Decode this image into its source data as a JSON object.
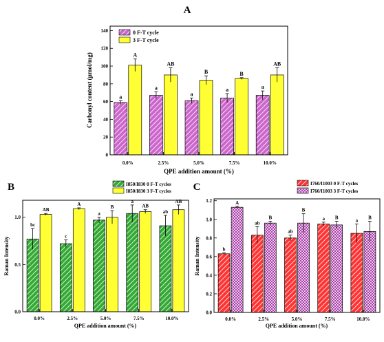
{
  "chart_data": [
    {
      "panel": "A",
      "type": "bar",
      "categories": [
        "0.0%",
        "2.5%",
        "5.0%",
        "7.5%",
        "10.0%"
      ],
      "xlabel": "QPE addition amount (%)",
      "ylabel": "Carbonyl content (µmol/mg)",
      "ylim": [
        0,
        145
      ],
      "yticks": [
        0,
        20,
        40,
        60,
        80,
        100,
        120,
        140
      ],
      "legend_position": "top-left",
      "grid": false,
      "series": [
        {
          "name": "0 F-T cycle",
          "values": [
            59,
            67,
            61,
            64,
            67
          ],
          "errors": [
            2,
            4,
            3,
            5,
            5
          ],
          "letters": [
            "a",
            "a",
            "a",
            "a",
            "a"
          ],
          "color": "#cc66cc",
          "pattern": "diagonal-hatch"
        },
        {
          "name": "3 F-T cycle",
          "values": [
            101,
            90,
            84,
            86,
            90
          ],
          "errors": [
            7,
            8,
            5,
            1,
            8
          ],
          "letters": [
            "A",
            "AB",
            "B",
            "B",
            "AB"
          ],
          "color": "#ffff33",
          "pattern": "solid"
        }
      ]
    },
    {
      "panel": "B",
      "type": "bar",
      "categories": [
        "0.0%",
        "2.5%",
        "5.0%",
        "7.5%",
        "10.0%"
      ],
      "xlabel": "QPE addition amount (%)",
      "ylabel": "Raman Intensity",
      "ylim": [
        0,
        1.18
      ],
      "yticks": [
        0.0,
        0.5,
        1.0
      ],
      "legend_position": "top-right",
      "grid": false,
      "series": [
        {
          "name": "I850/I830 0 F-T cycles",
          "values": [
            0.77,
            0.72,
            0.97,
            1.04,
            0.91
          ],
          "errors": [
            0.11,
            0.04,
            0.03,
            0.09,
            0.11
          ],
          "letters": [
            "bc",
            "c",
            "a",
            "a",
            "ab"
          ],
          "color": "#33aa33",
          "pattern": "diagonal-hatch"
        },
        {
          "name": "I850/I830 3 F-T cycles",
          "values": [
            1.03,
            1.09,
            1.0,
            1.06,
            1.08
          ],
          "errors": [
            0.01,
            0.01,
            0.07,
            0.02,
            0.05
          ],
          "letters": [
            "AB",
            "A",
            "B",
            "AB",
            "AB"
          ],
          "color": "#ffff33",
          "pattern": "solid"
        }
      ]
    },
    {
      "panel": "C",
      "type": "bar",
      "categories": [
        "0.0%",
        "2.5%",
        "5.0%",
        "7.5%",
        "10.0%"
      ],
      "xlabel": "QPE addition amount (%)",
      "ylabel": "Raman Intensity",
      "ylim": [
        0,
        1.22
      ],
      "yticks": [
        0.0,
        0.2,
        0.4,
        0.6,
        0.8,
        1.0,
        1.2
      ],
      "legend_position": "top-right",
      "grid": false,
      "series": [
        {
          "name": "I760/I1003 0 F-T cycles",
          "values": [
            0.63,
            0.83,
            0.8,
            0.95,
            0.85
          ],
          "errors": [
            0.01,
            0.09,
            0.03,
            0.02,
            0.1
          ],
          "letters": [
            "b",
            "ab",
            "ab",
            "a",
            "a"
          ],
          "color": "#ff3333",
          "pattern": "diagonal-hatch"
        },
        {
          "name": "I760/I1003 3 F-T cycles",
          "values": [
            1.13,
            0.96,
            0.96,
            0.94,
            0.87
          ],
          "errors": [
            0.01,
            0.02,
            0.1,
            0.04,
            0.11
          ],
          "letters": [
            "A",
            "B",
            "B",
            "B",
            "B"
          ],
          "color": "#aa44aa",
          "pattern": "checker"
        }
      ]
    }
  ]
}
